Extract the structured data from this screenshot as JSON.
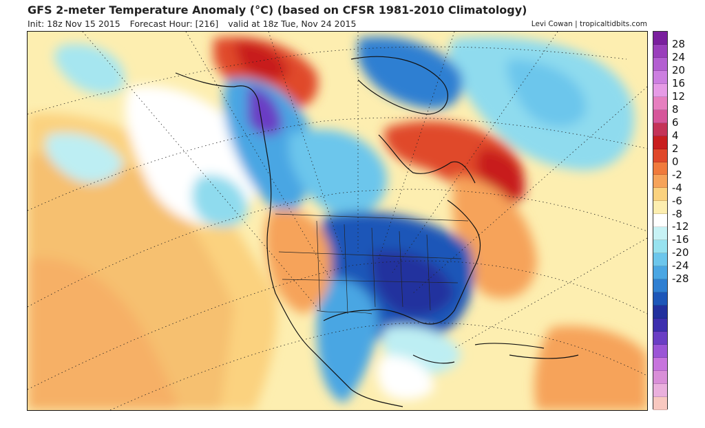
{
  "header": {
    "title": "GFS 2-meter Temperature Anomaly (°C) (based on CFSR 1981-2010 Climatology)",
    "init": "Init: 18z Nov 15 2015",
    "forecast_hour": "Forecast Hour: [216]",
    "valid": "valid at 18z Tue, Nov 24 2015",
    "credit": "Levi Cowan | tropicaltidbits.com"
  },
  "colorbar": {
    "labels": [
      "28",
      "24",
      "20",
      "16",
      "12",
      "8",
      "6",
      "4",
      "2",
      "0",
      "-2",
      "-4",
      "-6",
      "-8",
      "-12",
      "-16",
      "-20",
      "-24",
      "-28"
    ],
    "colors": [
      "#7a1f9e",
      "#9a3fbc",
      "#b35fd1",
      "#cc7fe0",
      "#e69be6",
      "#e67fbf",
      "#d6569a",
      "#c43357",
      "#c81e1e",
      "#e0482a",
      "#f07a3c",
      "#f6a35a",
      "#fbd27f",
      "#fdeeb0",
      "#ffffff",
      "#c7f2f5",
      "#97e2ef",
      "#6cc6ec",
      "#4aa6e3",
      "#2f7fd2",
      "#1d56b8",
      "#22309e",
      "#3d2fae",
      "#6a3ec4",
      "#9b55d6",
      "#c774dd",
      "#d98fd8",
      "#eab0dd",
      "#f8c8c0"
    ]
  }
}
